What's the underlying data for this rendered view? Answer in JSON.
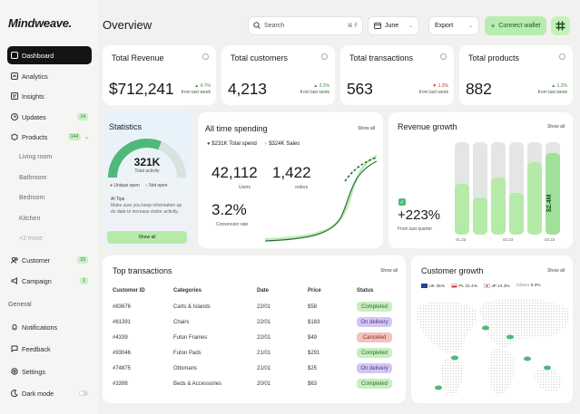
{
  "app": {
    "logo": "Mindweave."
  },
  "sidebar": {
    "items": [
      {
        "label": "Dashboard"
      },
      {
        "label": "Analytics"
      },
      {
        "label": "Insights"
      },
      {
        "label": "Updates",
        "badge": "14"
      },
      {
        "label": "Products",
        "badge": "144"
      },
      {
        "label": "Customer",
        "badge": "23"
      },
      {
        "label": "Campaign",
        "badge": "1"
      }
    ],
    "product_subitems": [
      "Living room",
      "Bathroom",
      "Bedroom",
      "Kitchen",
      "+2 more"
    ],
    "general_label": "General",
    "general_items": [
      {
        "label": "Notifications"
      },
      {
        "label": "Feedback"
      },
      {
        "label": "Settings"
      },
      {
        "label": "Dark mode"
      }
    ]
  },
  "header": {
    "title": "Overview",
    "search_placeholder": "Search",
    "search_shortcut": "⌘ F",
    "date_value": "June",
    "export_label": "Export",
    "connect_label": "Connect wallet"
  },
  "kpis": [
    {
      "title": "Total Revenue",
      "value": "$712,241",
      "delta": "4.7%",
      "direction": "up",
      "note": "from last week"
    },
    {
      "title": "Total customers",
      "value": "4,213",
      "delta": "3.2%",
      "direction": "up",
      "note": "from last week"
    },
    {
      "title": "Total transactions",
      "value": "563",
      "delta": "1.3%",
      "direction": "down",
      "note": "from last week"
    },
    {
      "title": "Total products",
      "value": "882",
      "delta": "1.2%",
      "direction": "up",
      "note": "from last week"
    }
  ],
  "statistics": {
    "title": "Statistics",
    "gauge_value": "321K",
    "gauge_label": "Total activity",
    "gauge_fill_fraction": 0.62,
    "legend": [
      "Unique open",
      "Not open"
    ],
    "tips_title": "AI Tips",
    "tips_text": "Make sure you keep information up do date to increase visitor activity.",
    "button": "Show all"
  },
  "spending": {
    "title": "All time spending",
    "show_all": "Show all",
    "legend": [
      "$231K Total spend",
      "$324K Sales"
    ],
    "users_value": "42,112",
    "users_label": "Users",
    "orders_value": "1,422",
    "orders_label": "orders",
    "conversion_value": "3.2%",
    "conversion_label": "Conversion rate"
  },
  "revenue_growth": {
    "title": "Revenue growth",
    "show_all": "Show all",
    "value": "+223%",
    "note": "From last quarter",
    "bar_label": "$2.4M",
    "axis_labels": [
      "01.23",
      "02.23",
      "03.23"
    ],
    "bar_fill_fractions": [
      0.55,
      0.4,
      0.62,
      0.45,
      0.78,
      0.88
    ]
  },
  "transactions": {
    "title": "Top transactions",
    "show_all": "Show all",
    "headers": [
      "Customer ID",
      "Categories",
      "Date",
      "Price",
      "Status"
    ],
    "rows": [
      {
        "id": "#83676",
        "category": "Carts & Islands",
        "date": "22/01",
        "price": "$58",
        "status": "Completed"
      },
      {
        "id": "#61391",
        "category": "Chairs",
        "date": "22/01",
        "price": "$183",
        "status": "On delivery"
      },
      {
        "id": "#4339",
        "category": "Futon Frames",
        "date": "22/01",
        "price": "$49",
        "status": "Canceled"
      },
      {
        "id": "#93046",
        "category": "Futon Pads",
        "date": "21/01",
        "price": "$291",
        "status": "Completed"
      },
      {
        "id": "#74875",
        "category": "Ottomans",
        "date": "21/01",
        "price": "$25",
        "status": "On delivery"
      },
      {
        "id": "#3398",
        "category": "Beds & Accessories",
        "date": "20/01",
        "price": "$63",
        "status": "Completed"
      }
    ]
  },
  "customer_growth": {
    "title": "Customer growth",
    "show_all": "Show all",
    "countries": [
      {
        "label": "UK",
        "pct": "35%"
      },
      {
        "label": "PL",
        "pct": "31.4%"
      },
      {
        "label": "JP",
        "pct": "24.3%"
      },
      {
        "label": "Others",
        "pct": "9.3%"
      }
    ]
  },
  "colors": {
    "accent": "#b8ecb0",
    "accent_dark": "#3a8f3a",
    "sidebar_active": "#141414",
    "completed": "#c8efc0",
    "on_delivery": "#d4c6f3",
    "canceled": "#f3c2bf"
  }
}
